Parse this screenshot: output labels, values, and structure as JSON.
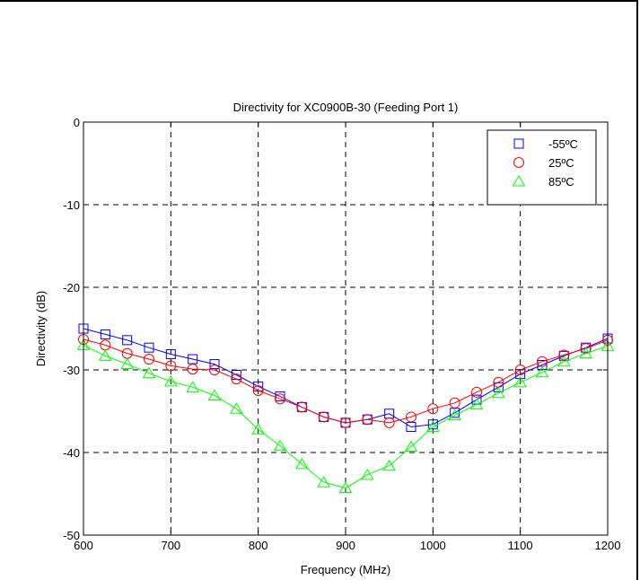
{
  "chart_data": {
    "type": "line",
    "title": "Directivity for XC0900B-30 (Feeding Port 1)",
    "xlabel": "Frequency (MHz)",
    "ylabel": "Directivity (dB)",
    "xlim": [
      600,
      1200
    ],
    "ylim": [
      -50,
      0
    ],
    "xticks": [
      600,
      700,
      800,
      900,
      1000,
      1100,
      1200
    ],
    "yticks": [
      0,
      -10,
      -20,
      -30,
      -40,
      -50
    ],
    "grid": true,
    "legend_position": "top-right",
    "series": [
      {
        "name": "-55ºC",
        "color": "#0000ff",
        "marker": "square",
        "x": [
          600,
          625,
          650,
          675,
          700,
          725,
          750,
          775,
          800,
          825,
          850,
          875,
          900,
          925,
          950,
          975,
          1000,
          1025,
          1050,
          1075,
          1100,
          1125,
          1150,
          1175,
          1200
        ],
        "values": [
          -25,
          -25.7,
          -26.4,
          -27.3,
          -28.1,
          -28.7,
          -29.3,
          -30.6,
          -32,
          -33.2,
          -34.5,
          -35.7,
          -36.4,
          -36,
          -35.3,
          -36.9,
          -36.6,
          -35.2,
          -33.6,
          -32.1,
          -30.5,
          -29.4,
          -28.3,
          -27.3,
          -26.2
        ]
      },
      {
        "name": "25ºC",
        "color": "#ff0000",
        "marker": "circle",
        "x": [
          600,
          625,
          650,
          675,
          700,
          725,
          750,
          775,
          800,
          825,
          850,
          875,
          900,
          925,
          950,
          975,
          1000,
          1025,
          1050,
          1075,
          1100,
          1125,
          1150,
          1175,
          1200
        ],
        "values": [
          -26.3,
          -27,
          -28,
          -28.7,
          -29.5,
          -29.9,
          -30,
          -31.1,
          -32.5,
          -33.5,
          -34.5,
          -35.7,
          -36.4,
          -36,
          -36.4,
          -35.7,
          -34.7,
          -34,
          -32.7,
          -31.5,
          -30,
          -29,
          -28.2,
          -27.4,
          -26.4
        ]
      },
      {
        "name": "85ºC",
        "color": "#00ff00",
        "marker": "triangle",
        "x": [
          600,
          625,
          650,
          675,
          700,
          725,
          750,
          775,
          800,
          825,
          850,
          875,
          900,
          925,
          950,
          975,
          1000,
          1025,
          1050,
          1075,
          1100,
          1125,
          1150,
          1175,
          1200
        ],
        "values": [
          -27,
          -28.3,
          -29.3,
          -30.4,
          -31.4,
          -32.1,
          -33.1,
          -34.7,
          -37.2,
          -39.2,
          -41.4,
          -43.6,
          -44.3,
          -42.7,
          -41.6,
          -39.3,
          -36.9,
          -35.5,
          -34.2,
          -32.8,
          -31.5,
          -30.3,
          -29,
          -28,
          -27.1
        ]
      }
    ]
  }
}
